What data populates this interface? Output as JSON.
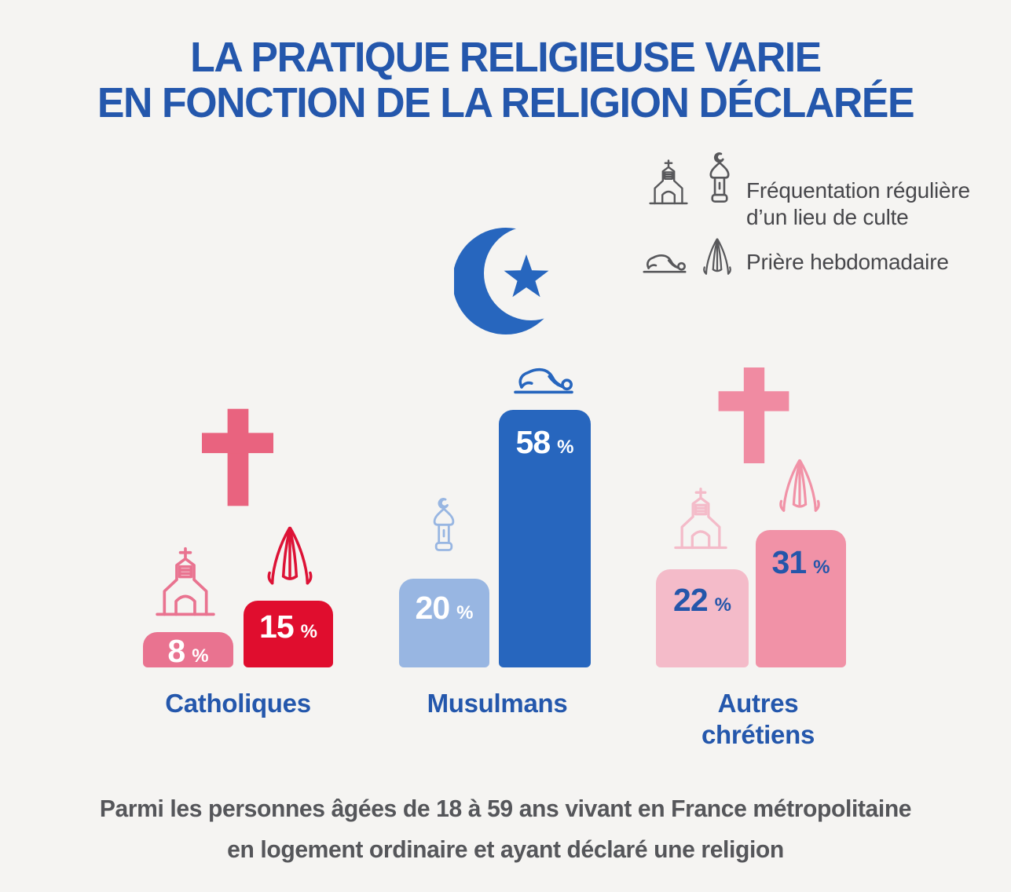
{
  "title": {
    "line1": "LA PRATIQUE RELIGIEUSE VARIE",
    "line2": "EN FONCTION DE LA RELIGION DÉCLARÉE"
  },
  "legend": {
    "items": [
      {
        "icons": [
          "church-icon",
          "minaret-icon"
        ],
        "label": "Fréquentation régulière d'un lieu de culte",
        "line1": "Fréquentation régulière",
        "line2": "d’un lieu de culte"
      },
      {
        "icons": [
          "prostration-icon",
          "praying-hands-icon"
        ],
        "label": "Prière hebdomadaire",
        "line1": "Prière hebdomadaire",
        "line2": ""
      }
    ]
  },
  "chart_data": {
    "type": "bar",
    "unit": "%",
    "ylim": [
      0,
      60
    ],
    "grid": false,
    "pixels_per_percent": 5.66,
    "metrics": [
      "Fréquentation régulière d'un lieu de culte",
      "Prière hebdomadaire"
    ],
    "groups": [
      {
        "label": "Catholiques",
        "label_line1": "Catholiques",
        "label_line2": "",
        "symbol": "latin-cross",
        "bars": [
          {
            "metric": "Fréquentation régulière d'un lieu de culte",
            "icon": "church-icon",
            "value": 8,
            "display": "8",
            "unit": "%",
            "color": "#e97390"
          },
          {
            "metric": "Prière hebdomadaire",
            "icon": "praying-hands-icon",
            "value": 15,
            "display": "15",
            "unit": "%",
            "color": "#e00d2e"
          }
        ]
      },
      {
        "label": "Musulmans",
        "label_line1": "Musulmans",
        "label_line2": "",
        "symbol": "crescent-and-star",
        "bars": [
          {
            "metric": "Fréquentation régulière d'un lieu de culte",
            "icon": "minaret-icon",
            "value": 20,
            "display": "20",
            "unit": "%",
            "color": "#98b6e2"
          },
          {
            "metric": "Prière hebdomadaire",
            "icon": "prostration-icon",
            "value": 58,
            "display": "58",
            "unit": "%",
            "color": "#2766be"
          }
        ]
      },
      {
        "label": "Autres chrétiens",
        "label_line1": "Autres",
        "label_line2": "chrétiens",
        "symbol": "latin-cross",
        "bars": [
          {
            "metric": "Fréquentation régulière d'un lieu de culte",
            "icon": "church-icon",
            "value": 22,
            "display": "22",
            "unit": "%",
            "color": "#f4bbc9"
          },
          {
            "metric": "Prière hebdomadaire",
            "icon": "praying-hands-icon",
            "value": 31,
            "display": "31",
            "unit": "%",
            "color": "#f192a7"
          }
        ]
      }
    ]
  },
  "footnote": {
    "line1": "Parmi les personnes âgées de 18 à 59 ans vivant en France métropolitaine",
    "line2": "en logement ordinaire et ayant déclaré une religion"
  },
  "colors": {
    "background": "#f5f4f2",
    "title_blue": "#2457ac",
    "bar_blue": "#2766be",
    "bar_light_blue": "#98b6e2",
    "bar_pink": "#e97390",
    "bar_crimson": "#e00d2e",
    "bar_light_pink": "#f4bbc9",
    "bar_rose": "#f192a7",
    "value_text_dark": "#2456aa",
    "legend_gray": "#47474b",
    "footnote_gray": "#55565a"
  }
}
